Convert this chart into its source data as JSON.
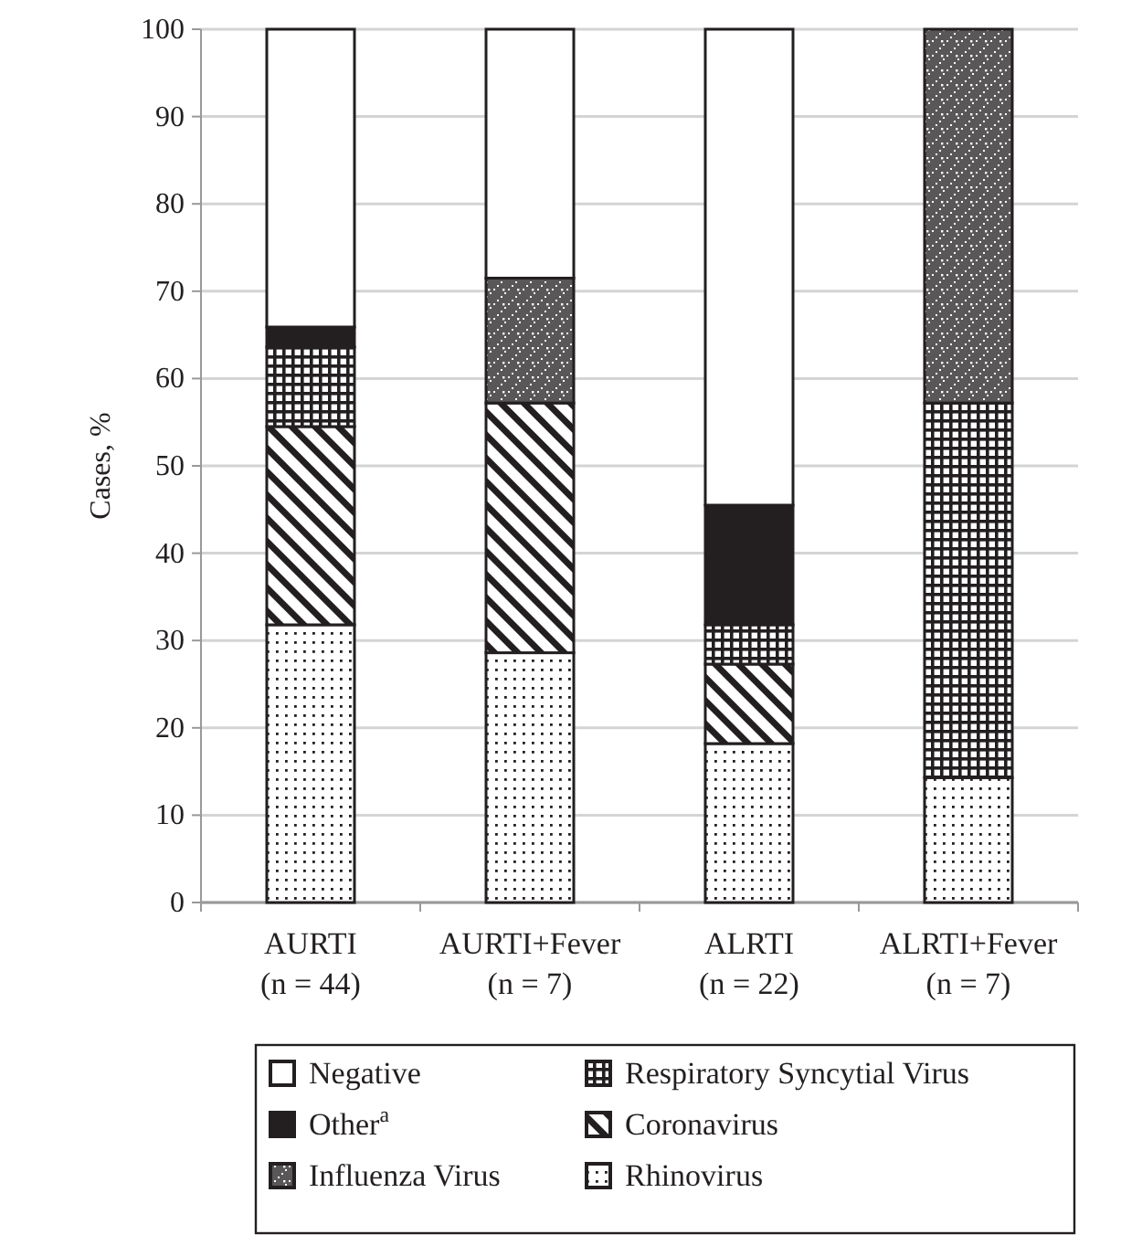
{
  "chart_data": {
    "type": "bar",
    "stacked": true,
    "ylabel": "Cases, %",
    "categories": [
      "AURTI\n(n = 44)",
      "AURTI+Fever\n(n = 7)",
      "ALRTI\n(n = 22)",
      "ALRTI+Fever\n(n = 7)"
    ],
    "series": [
      {
        "name": "Rhinovirus",
        "color": "#231f20",
        "values": [
          31.8,
          28.6,
          18.2,
          14.3
        ]
      },
      {
        "name": "Coronavirus",
        "color": "#231f20",
        "values": [
          22.7,
          28.6,
          9.1,
          0
        ]
      },
      {
        "name": "Respiratory Syncytial Virus",
        "color": "#231f20",
        "values": [
          9.1,
          0,
          4.5,
          42.9
        ]
      },
      {
        "name": "Influenza Virus",
        "color": "#231f20",
        "values": [
          0,
          14.3,
          0,
          42.8
        ]
      },
      {
        "name": "Other$^{a}$",
        "color": "#231f20",
        "values": [
          2.3,
          0,
          13.7,
          0
        ]
      },
      {
        "name": "Negative",
        "color": "#ffffff",
        "values": [
          34.1,
          28.5,
          54.5,
          0
        ]
      }
    ],
    "ylim": [
      0,
      100
    ],
    "yticks": [
      0,
      10,
      20,
      30,
      40,
      50,
      60,
      70,
      80,
      90,
      100
    ],
    "grid": "y",
    "legend": "bottom"
  }
}
